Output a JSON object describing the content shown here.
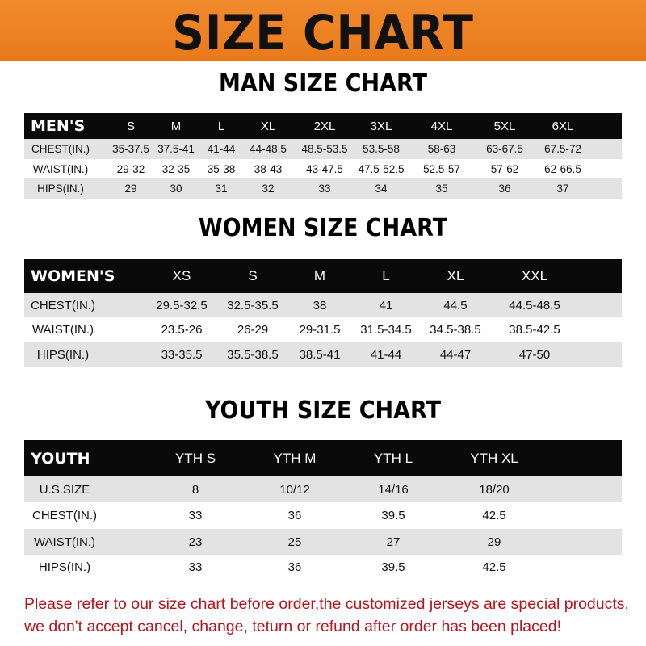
{
  "banner": {
    "title": "SIZE CHART",
    "color": "#ec8024"
  },
  "men": {
    "title": "MAN SIZE CHART",
    "header": [
      "MEN'S",
      "S",
      "M",
      "L",
      "XL",
      "2XL",
      "3XL",
      "4XL",
      "5XL",
      "6XL"
    ],
    "rows": [
      [
        "CHEST(IN.)",
        "35-37.5",
        "37.5-41",
        "41-44",
        "44-48.5",
        "48.5-53.5",
        "53.5-58",
        "58-63",
        "63-67.5",
        "67.5-72"
      ],
      [
        "WAIST(IN.)",
        "29-32",
        "32-35",
        "35-38",
        "38-43",
        "43-47.5",
        "47.5-52.5",
        "52.5-57",
        "57-62",
        "62-66.5"
      ],
      [
        "HIPS(IN.)",
        "29",
        "30",
        "31",
        "32",
        "33",
        "34",
        "35",
        "36",
        "37"
      ]
    ]
  },
  "women": {
    "title": "WOMEN SIZE CHART",
    "header": [
      "WOMEN'S",
      "XS",
      "S",
      "M",
      "L",
      "XL",
      "XXL"
    ],
    "rows": [
      [
        "CHEST(IN.)",
        "29.5-32.5",
        "32.5-35.5",
        "38",
        "41",
        "44.5",
        "44.5-48.5"
      ],
      [
        "WAIST(IN.)",
        "23.5-26",
        "26-29",
        "29-31.5",
        "31.5-34.5",
        "34.5-38.5",
        "38.5-42.5"
      ],
      [
        "HIPS(IN.)",
        "33-35.5",
        "35.5-38.5",
        "38.5-41",
        "41-44",
        "44-47",
        "47-50"
      ]
    ]
  },
  "youth": {
    "title": "YOUTH SIZE CHART",
    "header": [
      "YOUTH",
      "YTH S",
      "YTH M",
      "YTH L",
      "YTH XL"
    ],
    "rows": [
      [
        "U.S.SIZE",
        "8",
        "10/12",
        "14/16",
        "18/20"
      ],
      [
        "CHEST(IN.)",
        "33",
        "36",
        "39.5",
        "42.5"
      ],
      [
        "WAIST(IN.)",
        "23",
        "25",
        "27",
        "29"
      ],
      [
        "HIPS(IN.)",
        "33",
        "36",
        "39.5",
        "42.5"
      ]
    ]
  },
  "note": {
    "line1": "Please refer to our size chart before order,the customized jerseys are special products,",
    "line2": "we don't accept cancel, change, teturn or refund after order has been placed!",
    "color": "#b8141b"
  }
}
